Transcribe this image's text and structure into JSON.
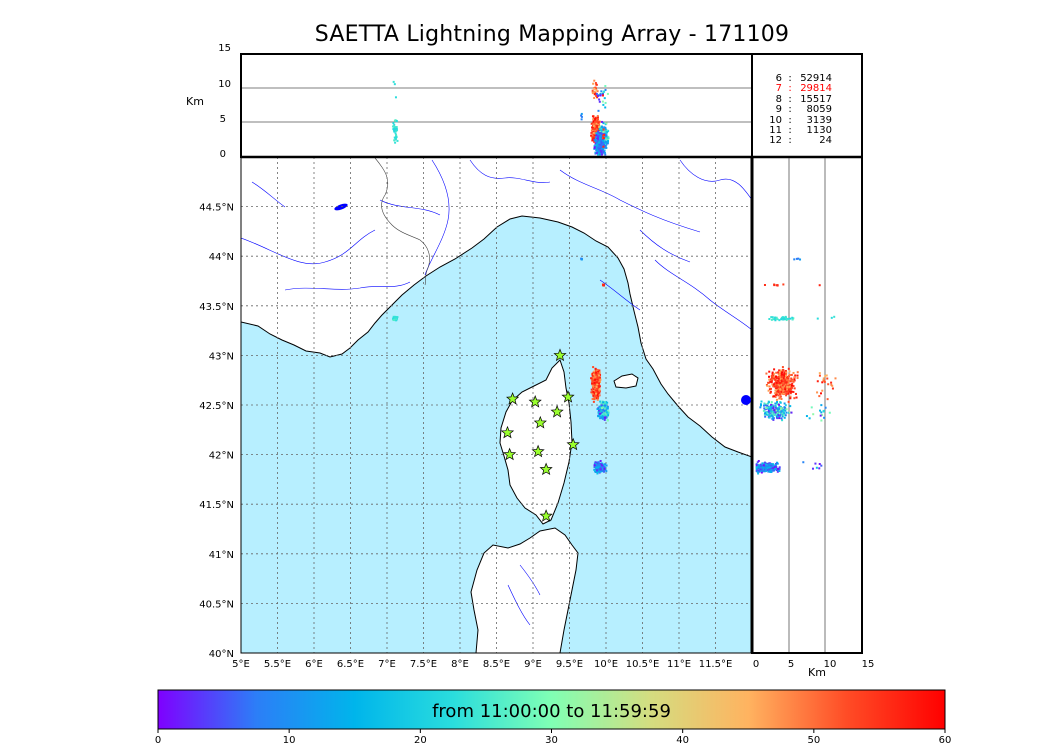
{
  "title": "SAETTA Lightning Mapping Array - 171109",
  "time_range_label": "from 11:00:00 to 11:59:59",
  "altitude_unit": "Km",
  "height_ticks": [
    "0",
    "5",
    "10",
    "15"
  ],
  "lat_ticks": [
    "40°N",
    "40.5°N",
    "41°N",
    "41.5°N",
    "42°N",
    "42.5°N",
    "43°N",
    "43.5°N",
    "44°N",
    "44.5°N"
  ],
  "lon_ticks": [
    "5°E",
    "5.5°E",
    "6°E",
    "6.5°E",
    "7°E",
    "7.5°E",
    "8°E",
    "8.5°E",
    "9°E",
    "9.5°E",
    "10°E",
    "10.5°E",
    "11°E",
    "11.5°E"
  ],
  "colorbar": {
    "min": 0,
    "max": 60,
    "ticks": [
      "0",
      "10",
      "20",
      "30",
      "40",
      "50",
      "60"
    ],
    "colors": [
      "#7f00ff",
      "#2c7ef7",
      "#00b5eb",
      "#2adddd",
      "#80ffb4",
      "#d4dd80",
      "#ffb360",
      "#ff4c26",
      "#ff0000"
    ]
  },
  "colors": {
    "sea": "#b7efff",
    "rivers": "#0000ff",
    "highlight": "#ff0000"
  },
  "station_counts": [
    {
      "stations": "6",
      "sources": "52914",
      "highlight": false
    },
    {
      "stations": "7",
      "sources": "29814",
      "highlight": true
    },
    {
      "stations": "8",
      "sources": "15517",
      "highlight": false
    },
    {
      "stations": "9",
      "sources": "8059",
      "highlight": false
    },
    {
      "stations": "10",
      "sources": "3139",
      "highlight": false
    },
    {
      "stations": "11",
      "sources": "1130",
      "highlight": false
    },
    {
      "stations": "12",
      "sources": "24",
      "highlight": false
    }
  ]
}
